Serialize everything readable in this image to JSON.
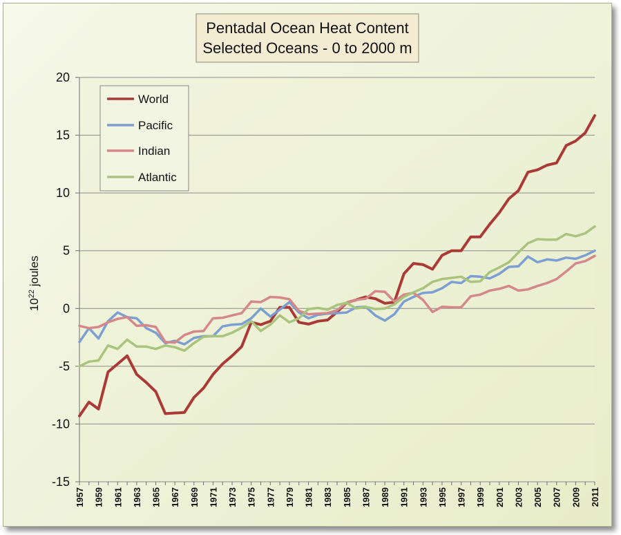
{
  "chart_data": {
    "type": "line",
    "title_line1": "Pentadal Ocean Heat Content",
    "title_line2": "Selected Oceans - 0 to 2000 m",
    "ylabel_base": "10",
    "ylabel_sup": "22",
    "ylabel_rest": " joules",
    "ylim": [
      -15,
      20
    ],
    "yticks": [
      -15,
      -10,
      -5,
      0,
      5,
      10,
      15,
      20
    ],
    "xlim": [
      1957,
      2011
    ],
    "xticks": [
      "1957",
      "1959",
      "1961",
      "1963",
      "1965",
      "1967",
      "1969",
      "1971",
      "1973",
      "1975",
      "1977",
      "1979",
      "1981",
      "1983",
      "1985",
      "1987",
      "1989",
      "1991",
      "1993",
      "1995",
      "1997",
      "1999",
      "2001",
      "2003",
      "2005",
      "2007",
      "2009",
      "2011"
    ],
    "grid": true,
    "legend_position": "top-left",
    "x": [
      1957,
      1958,
      1959,
      1960,
      1961,
      1962,
      1963,
      1964,
      1965,
      1966,
      1967,
      1968,
      1969,
      1970,
      1971,
      1972,
      1973,
      1974,
      1975,
      1976,
      1977,
      1978,
      1979,
      1980,
      1981,
      1982,
      1983,
      1984,
      1985,
      1986,
      1987,
      1988,
      1989,
      1990,
      1991,
      1992,
      1993,
      1994,
      1995,
      1996,
      1997,
      1998,
      1999,
      2000,
      2001,
      2002,
      2003,
      2004,
      2005,
      2006,
      2007,
      2008,
      2009,
      2010,
      2011
    ],
    "series": [
      {
        "name": "World",
        "color": "#a93a36",
        "values": [
          -9.3,
          -8.1,
          -8.7,
          -5.5,
          -4.8,
          -4.1,
          -5.7,
          -6.4,
          -7.2,
          -9.1,
          -9.05,
          -9.0,
          -7.7,
          -6.9,
          -5.7,
          -4.8,
          -4.1,
          -3.3,
          -1.2,
          -1.4,
          -1.1,
          0.1,
          0.1,
          -1.2,
          -1.35,
          -1.1,
          -1.0,
          -0.3,
          0.5,
          0.75,
          1.0,
          0.85,
          0.45,
          0.55,
          3.0,
          3.9,
          3.8,
          3.4,
          4.6,
          5.0,
          5.0,
          6.2,
          6.2,
          7.3,
          8.3,
          9.5,
          10.2,
          11.8,
          12.0,
          12.4,
          12.6,
          14.1,
          14.5,
          15.2,
          16.7
        ]
      },
      {
        "name": "Pacific",
        "color": "#7b9fd3",
        "values": [
          -2.9,
          -1.7,
          -2.6,
          -1.1,
          -0.35,
          -0.75,
          -0.85,
          -1.7,
          -2.1,
          -3.0,
          -2.8,
          -3.1,
          -2.55,
          -2.4,
          -2.4,
          -1.55,
          -1.4,
          -1.35,
          -0.85,
          0.0,
          -0.7,
          -0.1,
          0.55,
          -0.35,
          -0.85,
          -0.55,
          -0.45,
          -0.4,
          -0.35,
          0.1,
          0.15,
          -0.6,
          -1.05,
          -0.5,
          0.6,
          1.0,
          1.35,
          1.4,
          1.75,
          2.3,
          2.2,
          2.8,
          2.75,
          2.6,
          3.0,
          3.6,
          3.65,
          4.5,
          4.0,
          4.25,
          4.15,
          4.4,
          4.3,
          4.6,
          5.0
        ]
      },
      {
        "name": "Indian",
        "color": "#d4888a",
        "values": [
          -1.5,
          -1.7,
          -1.6,
          -1.2,
          -0.9,
          -0.75,
          -1.5,
          -1.45,
          -1.6,
          -2.9,
          -2.95,
          -2.3,
          -2.0,
          -1.95,
          -0.85,
          -0.8,
          -0.6,
          -0.4,
          0.6,
          0.55,
          1.0,
          0.95,
          0.8,
          -0.2,
          -0.5,
          -0.45,
          -0.4,
          -0.15,
          0.5,
          0.75,
          0.85,
          1.5,
          1.45,
          0.6,
          1.2,
          1.35,
          0.75,
          -0.3,
          0.15,
          0.1,
          0.1,
          1.05,
          1.2,
          1.55,
          1.7,
          1.95,
          1.55,
          1.65,
          1.95,
          2.2,
          2.55,
          3.2,
          3.9,
          4.1,
          4.55
        ]
      },
      {
        "name": "Atlantic",
        "color": "#a8c47d",
        "values": [
          -5.0,
          -4.6,
          -4.5,
          -3.2,
          -3.5,
          -2.7,
          -3.3,
          -3.3,
          -3.5,
          -3.2,
          -3.35,
          -3.65,
          -3.0,
          -2.45,
          -2.4,
          -2.4,
          -2.1,
          -1.65,
          -1.1,
          -1.95,
          -1.4,
          -0.6,
          -1.2,
          -0.85,
          -0.05,
          0.05,
          -0.1,
          0.3,
          0.5,
          0.0,
          0.15,
          -0.05,
          0.0,
          0.35,
          1.0,
          1.4,
          1.75,
          2.3,
          2.55,
          2.65,
          2.75,
          2.3,
          2.35,
          3.15,
          3.55,
          4.0,
          4.85,
          5.65,
          6.0,
          5.95,
          5.95,
          6.45,
          6.25,
          6.5,
          7.1
        ]
      }
    ]
  }
}
